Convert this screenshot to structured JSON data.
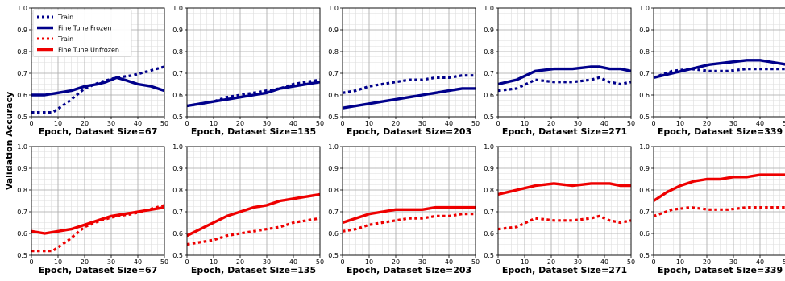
{
  "figure": {
    "ylabel": "Validation Accuracy"
  },
  "chart_data": [
    {
      "type": "line",
      "row": "frozen",
      "xlabel": "Epoch, Dataset Size=67",
      "xlim": [
        0,
        50
      ],
      "ylim": [
        0.5,
        1.0
      ],
      "xticks": [
        "0",
        "10",
        "20",
        "30",
        "40",
        "50"
      ],
      "yticks": [
        "0.5",
        "0.6",
        "0.7",
        "0.8",
        "0.9",
        "1.0"
      ],
      "grid": true,
      "legend": {
        "placement": "top-left",
        "entries": [
          {
            "name": "Train",
            "color": "#00008b",
            "style": "dotted"
          },
          {
            "name": "Fine Tune Frozen",
            "color": "#00008b",
            "style": "solid"
          },
          {
            "name": "Train",
            "color": "#ee0000",
            "style": "dotted"
          },
          {
            "name": "Fine Tune Unfrozen",
            "color": "#ee0000",
            "style": "solid"
          }
        ]
      },
      "series": [
        {
          "name": "Train",
          "color": "#00008b",
          "style": "dotted",
          "x": [
            0,
            3,
            8,
            14,
            20,
            26,
            32,
            38,
            44,
            50
          ],
          "y": [
            0.52,
            0.52,
            0.52,
            0.57,
            0.63,
            0.66,
            0.68,
            0.69,
            0.71,
            0.73
          ]
        },
        {
          "name": "Fine Tune Frozen",
          "color": "#00008b",
          "style": "solid",
          "x": [
            0,
            5,
            10,
            15,
            20,
            25,
            28,
            32,
            35,
            40,
            45,
            50
          ],
          "y": [
            0.6,
            0.6,
            0.61,
            0.62,
            0.64,
            0.65,
            0.66,
            0.68,
            0.67,
            0.65,
            0.64,
            0.62
          ]
        }
      ]
    },
    {
      "type": "line",
      "row": "frozen",
      "xlabel": "Epoch, Dataset Size=135",
      "xlim": [
        0,
        50
      ],
      "ylim": [
        0.5,
        1.0
      ],
      "xticks": [
        "0",
        "10",
        "20",
        "30",
        "40",
        "50"
      ],
      "yticks": [
        "0.5",
        "0.6",
        "0.7",
        "0.8",
        "0.9",
        "1.0"
      ],
      "grid": true,
      "series": [
        {
          "name": "Train",
          "color": "#00008b",
          "style": "dotted",
          "x": [
            0,
            5,
            10,
            15,
            20,
            25,
            30,
            35,
            40,
            45,
            50
          ],
          "y": [
            0.55,
            0.56,
            0.57,
            0.59,
            0.6,
            0.61,
            0.62,
            0.63,
            0.65,
            0.66,
            0.67
          ]
        },
        {
          "name": "Fine Tune Frozen",
          "color": "#00008b",
          "style": "solid",
          "x": [
            0,
            5,
            10,
            15,
            20,
            25,
            30,
            35,
            40,
            45,
            50
          ],
          "y": [
            0.55,
            0.56,
            0.57,
            0.58,
            0.59,
            0.6,
            0.61,
            0.63,
            0.64,
            0.65,
            0.66
          ]
        }
      ]
    },
    {
      "type": "line",
      "row": "frozen",
      "xlabel": "Epoch, Dataset Size=203",
      "xlim": [
        0,
        50
      ],
      "ylim": [
        0.5,
        1.0
      ],
      "xticks": [
        "0",
        "10",
        "20",
        "30",
        "40",
        "50"
      ],
      "yticks": [
        "0.5",
        "0.6",
        "0.7",
        "0.8",
        "0.9",
        "1.0"
      ],
      "grid": true,
      "series": [
        {
          "name": "Train",
          "color": "#00008b",
          "style": "dotted",
          "x": [
            0,
            5,
            10,
            15,
            20,
            25,
            30,
            35,
            40,
            45,
            50
          ],
          "y": [
            0.61,
            0.62,
            0.64,
            0.65,
            0.66,
            0.67,
            0.67,
            0.68,
            0.68,
            0.69,
            0.69
          ]
        },
        {
          "name": "Fine Tune Frozen",
          "color": "#00008b",
          "style": "solid",
          "x": [
            0,
            5,
            10,
            15,
            20,
            25,
            30,
            35,
            40,
            45,
            50
          ],
          "y": [
            0.54,
            0.55,
            0.56,
            0.57,
            0.58,
            0.59,
            0.6,
            0.61,
            0.62,
            0.63,
            0.63
          ]
        }
      ]
    },
    {
      "type": "line",
      "row": "frozen",
      "xlabel": "Epoch, Dataset Size=271",
      "xlim": [
        0,
        50
      ],
      "ylim": [
        0.5,
        1.0
      ],
      "xticks": [
        "0",
        "10",
        "20",
        "30",
        "40",
        "50"
      ],
      "yticks": [
        "0.5",
        "0.6",
        "0.7",
        "0.8",
        "0.9",
        "1.0"
      ],
      "grid": true,
      "series": [
        {
          "name": "Train",
          "color": "#00008b",
          "style": "dotted",
          "x": [
            0,
            7,
            14,
            21,
            28,
            35,
            38,
            42,
            46,
            50
          ],
          "y": [
            0.62,
            0.63,
            0.67,
            0.66,
            0.66,
            0.67,
            0.68,
            0.66,
            0.65,
            0.66
          ]
        },
        {
          "name": "Fine Tune Frozen",
          "color": "#00008b",
          "style": "solid",
          "x": [
            0,
            7,
            14,
            21,
            28,
            35,
            38,
            42,
            46,
            50
          ],
          "y": [
            0.65,
            0.67,
            0.71,
            0.72,
            0.72,
            0.73,
            0.73,
            0.72,
            0.72,
            0.71
          ]
        }
      ]
    },
    {
      "type": "line",
      "row": "frozen",
      "xlabel": "Epoch, Dataset Size=339",
      "xlim": [
        0,
        50
      ],
      "ylim": [
        0.5,
        1.0
      ],
      "xticks": [
        "0",
        "10",
        "20",
        "30",
        "40",
        "50"
      ],
      "yticks": [
        "0.5",
        "0.6",
        "0.7",
        "0.8",
        "0.9",
        "1.0"
      ],
      "grid": true,
      "series": [
        {
          "name": "Train",
          "color": "#00008b",
          "style": "dotted",
          "x": [
            0,
            7,
            14,
            21,
            28,
            35,
            40,
            45,
            50
          ],
          "y": [
            0.68,
            0.71,
            0.72,
            0.71,
            0.71,
            0.72,
            0.72,
            0.72,
            0.72
          ]
        },
        {
          "name": "Fine Tune Frozen",
          "color": "#00008b",
          "style": "solid",
          "x": [
            0,
            7,
            14,
            21,
            28,
            35,
            40,
            45,
            50
          ],
          "y": [
            0.68,
            0.7,
            0.72,
            0.74,
            0.75,
            0.76,
            0.76,
            0.75,
            0.74
          ]
        }
      ]
    },
    {
      "type": "line",
      "row": "unfrozen",
      "xlabel": "Epoch, Dataset Size=67",
      "xlim": [
        0,
        50
      ],
      "ylim": [
        0.5,
        1.0
      ],
      "xticks": [
        "0",
        "10",
        "20",
        "30",
        "40",
        "50"
      ],
      "yticks": [
        "0.5",
        "0.6",
        "0.7",
        "0.8",
        "0.9",
        "1.0"
      ],
      "grid": true,
      "series": [
        {
          "name": "Train",
          "color": "#ee0000",
          "style": "dotted",
          "x": [
            0,
            3,
            8,
            14,
            20,
            26,
            32,
            38,
            44,
            50
          ],
          "y": [
            0.52,
            0.52,
            0.52,
            0.57,
            0.63,
            0.66,
            0.68,
            0.69,
            0.71,
            0.73
          ]
        },
        {
          "name": "Fine Tune Unfrozen",
          "color": "#ee0000",
          "style": "solid",
          "x": [
            0,
            5,
            10,
            15,
            20,
            25,
            30,
            35,
            40,
            45,
            50
          ],
          "y": [
            0.61,
            0.6,
            0.61,
            0.62,
            0.64,
            0.66,
            0.68,
            0.69,
            0.7,
            0.71,
            0.72
          ]
        }
      ]
    },
    {
      "type": "line",
      "row": "unfrozen",
      "xlabel": "Epoch, Dataset Size=135",
      "xlim": [
        0,
        50
      ],
      "ylim": [
        0.5,
        1.0
      ],
      "xticks": [
        "0",
        "10",
        "20",
        "30",
        "40",
        "50"
      ],
      "yticks": [
        "0.5",
        "0.6",
        "0.7",
        "0.8",
        "0.9",
        "1.0"
      ],
      "grid": true,
      "series": [
        {
          "name": "Train",
          "color": "#ee0000",
          "style": "dotted",
          "x": [
            0,
            5,
            10,
            15,
            20,
            25,
            30,
            35,
            40,
            45,
            50
          ],
          "y": [
            0.55,
            0.56,
            0.57,
            0.59,
            0.6,
            0.61,
            0.62,
            0.63,
            0.65,
            0.66,
            0.67
          ]
        },
        {
          "name": "Fine Tune Unfrozen",
          "color": "#ee0000",
          "style": "solid",
          "x": [
            0,
            5,
            10,
            15,
            20,
            25,
            30,
            35,
            40,
            45,
            50
          ],
          "y": [
            0.59,
            0.62,
            0.65,
            0.68,
            0.7,
            0.72,
            0.73,
            0.75,
            0.76,
            0.77,
            0.78
          ]
        }
      ]
    },
    {
      "type": "line",
      "row": "unfrozen",
      "xlabel": "Epoch, Dataset Size=203",
      "xlim": [
        0,
        50
      ],
      "ylim": [
        0.5,
        1.0
      ],
      "xticks": [
        "0",
        "10",
        "20",
        "30",
        "40",
        "50"
      ],
      "yticks": [
        "0.5",
        "0.6",
        "0.7",
        "0.8",
        "0.9",
        "1.0"
      ],
      "grid": true,
      "series": [
        {
          "name": "Train",
          "color": "#ee0000",
          "style": "dotted",
          "x": [
            0,
            5,
            10,
            15,
            20,
            25,
            30,
            35,
            40,
            45,
            50
          ],
          "y": [
            0.61,
            0.62,
            0.64,
            0.65,
            0.66,
            0.67,
            0.67,
            0.68,
            0.68,
            0.69,
            0.69
          ]
        },
        {
          "name": "Fine Tune Unfrozen",
          "color": "#ee0000",
          "style": "solid",
          "x": [
            0,
            5,
            10,
            15,
            20,
            25,
            30,
            35,
            40,
            45,
            50
          ],
          "y": [
            0.65,
            0.67,
            0.69,
            0.7,
            0.71,
            0.71,
            0.71,
            0.72,
            0.72,
            0.72,
            0.72
          ]
        }
      ]
    },
    {
      "type": "line",
      "row": "unfrozen",
      "xlabel": "Epoch, Dataset Size=271",
      "xlim": [
        0,
        50
      ],
      "ylim": [
        0.5,
        1.0
      ],
      "xticks": [
        "0",
        "10",
        "20",
        "30",
        "40",
        "50"
      ],
      "yticks": [
        "0.5",
        "0.6",
        "0.7",
        "0.8",
        "0.9",
        "1.0"
      ],
      "grid": true,
      "series": [
        {
          "name": "Train",
          "color": "#ee0000",
          "style": "dotted",
          "x": [
            0,
            7,
            14,
            21,
            28,
            35,
            38,
            42,
            46,
            50
          ],
          "y": [
            0.62,
            0.63,
            0.67,
            0.66,
            0.66,
            0.67,
            0.68,
            0.66,
            0.65,
            0.66
          ]
        },
        {
          "name": "Fine Tune Unfrozen",
          "color": "#ee0000",
          "style": "solid",
          "x": [
            0,
            7,
            14,
            21,
            28,
            35,
            38,
            42,
            46,
            50
          ],
          "y": [
            0.78,
            0.8,
            0.82,
            0.83,
            0.82,
            0.83,
            0.83,
            0.83,
            0.82,
            0.82
          ]
        }
      ]
    },
    {
      "type": "line",
      "row": "unfrozen",
      "xlabel": "Epoch, Dataset Size=339",
      "xlim": [
        0,
        50
      ],
      "ylim": [
        0.5,
        1.0
      ],
      "xticks": [
        "0",
        "10",
        "20",
        "30",
        "40",
        "50"
      ],
      "yticks": [
        "0.5",
        "0.6",
        "0.7",
        "0.8",
        "0.9",
        "1.0"
      ],
      "grid": true,
      "series": [
        {
          "name": "Train",
          "color": "#ee0000",
          "style": "dotted",
          "x": [
            0,
            7,
            14,
            21,
            28,
            35,
            40,
            45,
            50
          ],
          "y": [
            0.68,
            0.71,
            0.72,
            0.71,
            0.71,
            0.72,
            0.72,
            0.72,
            0.72
          ]
        },
        {
          "name": "Fine Tune Unfrozen",
          "color": "#ee0000",
          "style": "solid",
          "x": [
            0,
            5,
            10,
            15,
            20,
            25,
            30,
            35,
            40,
            45,
            50
          ],
          "y": [
            0.75,
            0.79,
            0.82,
            0.84,
            0.85,
            0.85,
            0.86,
            0.86,
            0.87,
            0.87,
            0.87
          ]
        }
      ]
    }
  ]
}
